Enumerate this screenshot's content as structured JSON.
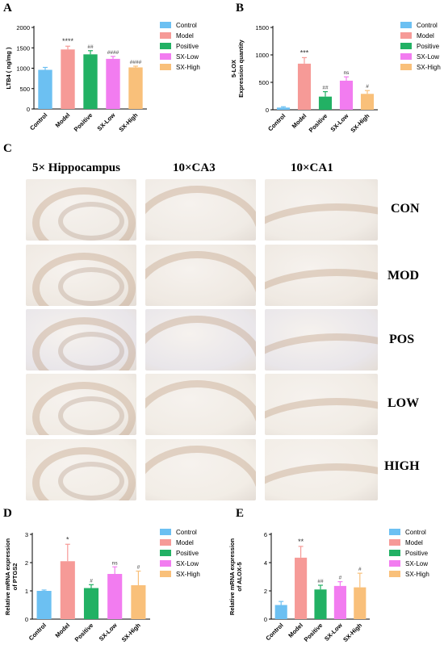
{
  "panels": {
    "A": "A",
    "B": "B",
    "C": "C",
    "D": "D",
    "E": "E"
  },
  "legend": [
    {
      "label": "Control",
      "color": "#6cc0f2"
    },
    {
      "label": "Model",
      "color": "#f69a97"
    },
    {
      "label": "Positive",
      "color": "#22b164"
    },
    {
      "label": "SX-Low",
      "color": "#f27cf0"
    },
    {
      "label": "SX-High",
      "color": "#f9c07a"
    }
  ],
  "chart_data": [
    {
      "id": "A",
      "type": "bar",
      "categories": [
        "Control",
        "Model",
        "Positive",
        "SX-Low",
        "SX-High"
      ],
      "values": [
        960,
        1460,
        1340,
        1230,
        1020
      ],
      "errors": [
        60,
        80,
        90,
        60,
        30
      ],
      "significance": [
        "",
        "****",
        "##",
        "####",
        "####"
      ],
      "ylabel": "LTB4 ( ng/mg )",
      "ylim": [
        0,
        2000
      ],
      "yticks": [
        0,
        500,
        1000,
        1500,
        2000
      ]
    },
    {
      "id": "B",
      "type": "bar",
      "categories": [
        "Control",
        "Model",
        "Positive",
        "SX-Low",
        "SX-High"
      ],
      "values": [
        40,
        840,
        240,
        530,
        290
      ],
      "errors": [
        15,
        110,
        90,
        70,
        60
      ],
      "significance": [
        "",
        "***",
        "##",
        "ns",
        "#"
      ],
      "ylabel": [
        "5-LOX",
        "Expression quantity"
      ],
      "ylim": [
        0,
        1500
      ],
      "yticks": [
        0,
        500,
        1000,
        1500
      ]
    },
    {
      "id": "D",
      "type": "bar",
      "categories": [
        "Control",
        "Model",
        "Positive",
        "SX-Low",
        "SX-High"
      ],
      "values": [
        1.0,
        2.05,
        1.1,
        1.6,
        1.2
      ],
      "errors": [
        0.03,
        0.6,
        0.12,
        0.25,
        0.5
      ],
      "significance": [
        "",
        "*",
        "#",
        "ns",
        "#"
      ],
      "ylabel": [
        "Relative mRNA expression",
        "of PTGS2"
      ],
      "ylim": [
        0,
        3
      ],
      "yticks": [
        0,
        1,
        2,
        3
      ]
    },
    {
      "id": "E",
      "type": "bar",
      "categories": [
        "Control",
        "Model",
        "Positive",
        "SX-Low",
        "SX-High"
      ],
      "values": [
        1.0,
        4.35,
        2.1,
        2.35,
        2.25
      ],
      "errors": [
        0.25,
        0.8,
        0.3,
        0.3,
        1.0
      ],
      "significance": [
        "",
        "**",
        "##",
        "#",
        "#"
      ],
      "ylabel": [
        "Relative mRNA expression",
        "of ALOX-5"
      ],
      "ylim": [
        0,
        6
      ],
      "yticks": [
        0,
        2,
        4,
        6
      ]
    }
  ],
  "micrographs": {
    "column_headers": [
      "5× Hippocampus",
      "10×CA3",
      "10×CA1"
    ],
    "row_labels": [
      "CON",
      "MOD",
      "POS",
      "LOW",
      "HIGH"
    ]
  }
}
